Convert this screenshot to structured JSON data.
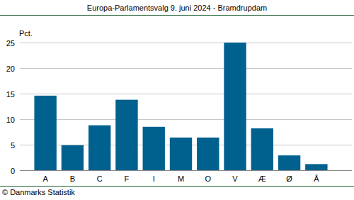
{
  "chart_data": {
    "type": "bar",
    "title": "Europa-Parlamentsvalg 9. juni 2024 - Bramdrupdam",
    "y_label": "Pct.",
    "source": "© Danmarks Statistik",
    "categories": [
      "A",
      "B",
      "C",
      "F",
      "I",
      "M",
      "O",
      "V",
      "Æ",
      "Ø",
      "Å"
    ],
    "values": [
      14.6,
      4.9,
      8.8,
      13.8,
      8.5,
      6.4,
      6.4,
      25.0,
      8.2,
      2.9,
      1.2
    ],
    "color": "#00618f",
    "ylim": [
      0,
      25
    ],
    "yticks": [
      0,
      5,
      10,
      15,
      20,
      25
    ],
    "grid": true
  }
}
